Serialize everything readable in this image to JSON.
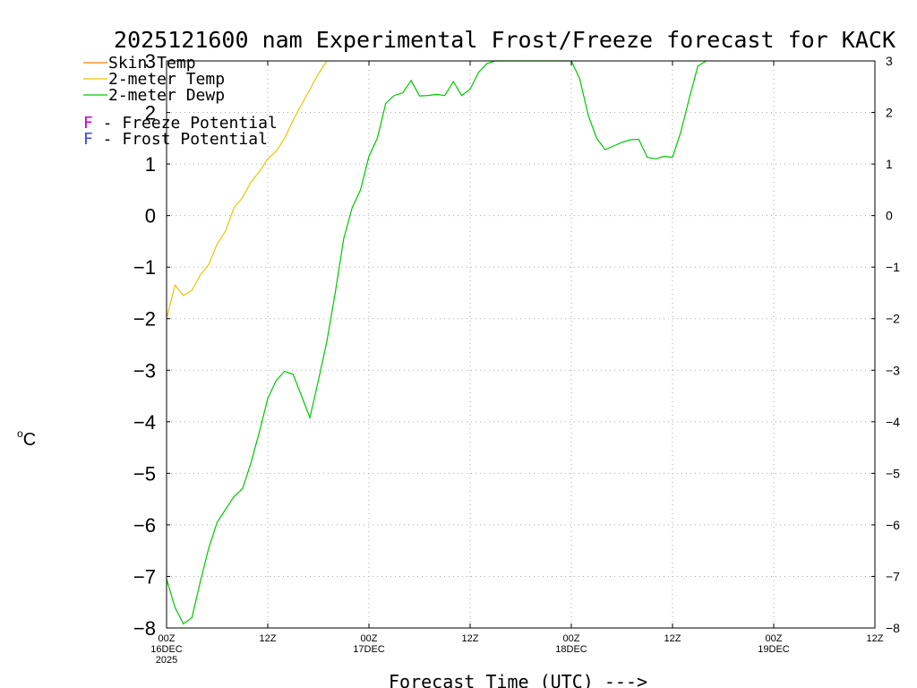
{
  "chart_data": {
    "type": "line",
    "title": "2025121600 nam Experimental Frost/Freeze forecast for KACK",
    "ylabel_sup": "o",
    "ylabel": "C",
    "xlabel": "Forecast Time (UTC) --->",
    "ylim": [
      -8,
      3
    ],
    "xlim": [
      0,
      84
    ],
    "yticks": [
      -8,
      -7,
      -6,
      -5,
      -4,
      -3,
      -2,
      -1,
      0,
      1,
      2,
      3
    ],
    "xticks": [
      {
        "x": 0,
        "lines": [
          "00Z",
          "16DEC",
          "2025"
        ]
      },
      {
        "x": 12,
        "lines": [
          "12Z"
        ]
      },
      {
        "x": 24,
        "lines": [
          "00Z",
          "17DEC"
        ]
      },
      {
        "x": 36,
        "lines": [
          "12Z"
        ]
      },
      {
        "x": 48,
        "lines": [
          "00Z",
          "18DEC"
        ]
      },
      {
        "x": 60,
        "lines": [
          "12Z"
        ]
      },
      {
        "x": 72,
        "lines": [
          "00Z",
          "19DEC"
        ]
      },
      {
        "x": 84,
        "lines": [
          "12Z"
        ]
      }
    ],
    "grid": true,
    "legend": [
      {
        "label": "Skin Temp",
        "color": "#ff8000"
      },
      {
        "label": "2-meter Temp",
        "color": "#e6c800"
      },
      {
        "label": "2-meter Dewp",
        "color": "#00c800"
      }
    ],
    "potential_legend": [
      {
        "letter": "F",
        "text": " - Freeze Potential",
        "color": "#c800c8"
      },
      {
        "letter": "F",
        "text": " - Frost Potential",
        "color": "#4040ff"
      }
    ],
    "series": [
      {
        "name": "2-meter Temp",
        "color": "#e6c800",
        "points": [
          [
            0,
            -2.0
          ],
          [
            1,
            -1.35
          ],
          [
            2,
            -1.55
          ],
          [
            3,
            -1.45
          ],
          [
            4,
            -1.15
          ],
          [
            5,
            -0.95
          ],
          [
            6,
            -0.55
          ],
          [
            7,
            -0.3
          ],
          [
            8,
            0.15
          ],
          [
            9,
            0.35
          ],
          [
            10,
            0.65
          ],
          [
            11,
            0.85
          ],
          [
            12,
            1.1
          ],
          [
            13,
            1.25
          ],
          [
            14,
            1.5
          ],
          [
            15,
            1.85
          ],
          [
            16,
            2.15
          ],
          [
            17,
            2.45
          ],
          [
            18,
            2.75
          ],
          [
            19,
            3.0
          ]
        ]
      },
      {
        "name": "2-meter Dewp",
        "color": "#00c800",
        "points": [
          [
            0,
            -7.05
          ],
          [
            1,
            -7.6
          ],
          [
            2,
            -7.92
          ],
          [
            3,
            -7.8
          ],
          [
            4,
            -7.1
          ],
          [
            5,
            -6.45
          ],
          [
            6,
            -5.95
          ],
          [
            7,
            -5.7
          ],
          [
            8,
            -5.45
          ],
          [
            9,
            -5.3
          ],
          [
            10,
            -4.8
          ],
          [
            11,
            -4.2
          ],
          [
            12,
            -3.55
          ],
          [
            13,
            -3.2
          ],
          [
            14,
            -3.02
          ],
          [
            15,
            -3.08
          ],
          [
            16,
            -3.5
          ],
          [
            17,
            -3.92
          ],
          [
            18,
            -3.2
          ],
          [
            19,
            -2.45
          ],
          [
            20,
            -1.5
          ],
          [
            21,
            -0.45
          ],
          [
            22,
            0.15
          ],
          [
            23,
            0.5
          ],
          [
            24,
            1.15
          ],
          [
            25,
            1.5
          ],
          [
            26,
            2.18
          ],
          [
            27,
            2.33
          ],
          [
            28,
            2.38
          ],
          [
            29,
            2.62
          ],
          [
            30,
            2.32
          ],
          [
            31,
            2.33
          ],
          [
            32,
            2.35
          ],
          [
            33,
            2.33
          ],
          [
            34,
            2.6
          ],
          [
            35,
            2.33
          ],
          [
            36,
            2.45
          ],
          [
            37,
            2.78
          ],
          [
            38,
            2.95
          ],
          [
            39,
            3.0
          ],
          [
            48,
            3.0
          ],
          [
            49,
            2.65
          ],
          [
            50,
            1.95
          ],
          [
            51,
            1.5
          ],
          [
            52,
            1.28
          ],
          [
            53,
            1.35
          ],
          [
            54,
            1.42
          ],
          [
            55,
            1.47
          ],
          [
            56,
            1.48
          ],
          [
            57,
            1.13
          ],
          [
            58,
            1.1
          ],
          [
            59,
            1.15
          ],
          [
            60,
            1.13
          ],
          [
            61,
            1.63
          ],
          [
            62,
            2.28
          ],
          [
            63,
            2.9
          ],
          [
            64,
            3.0
          ]
        ]
      }
    ]
  }
}
